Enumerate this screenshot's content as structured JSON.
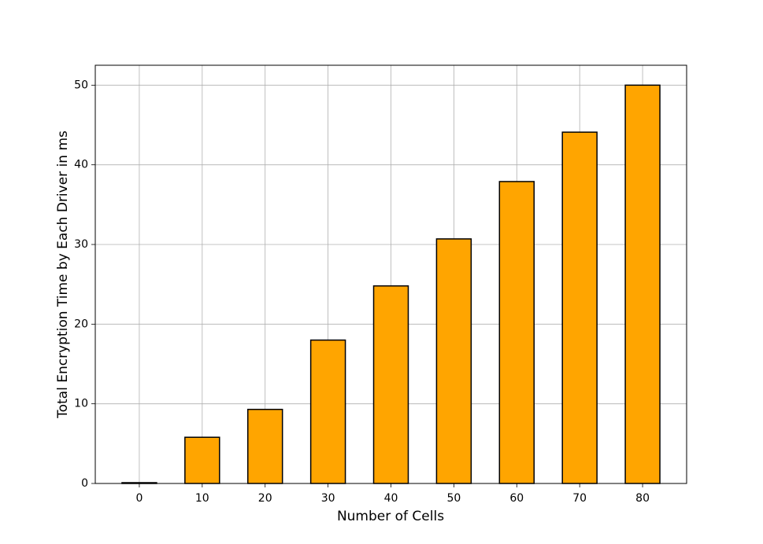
{
  "chart_data": {
    "type": "bar",
    "x_label": "Number of Cells",
    "y_label": "Total Encryption Time by Each Driver in ms",
    "x": [
      0,
      10,
      20,
      30,
      40,
      50,
      60,
      70,
      80
    ],
    "values": [
      0.1,
      5.8,
      9.3,
      18.0,
      24.8,
      30.7,
      37.9,
      44.1,
      50.0
    ],
    "color": "#ffa500",
    "edgecolor": "#000000",
    "xlim": [
      -7,
      87
    ],
    "xticks": [
      0,
      10,
      20,
      30,
      40,
      50,
      60,
      70,
      80
    ],
    "ylim": [
      0,
      52.5
    ],
    "yticks": [
      0,
      10,
      20,
      30,
      40,
      50
    ],
    "grid": true
  }
}
